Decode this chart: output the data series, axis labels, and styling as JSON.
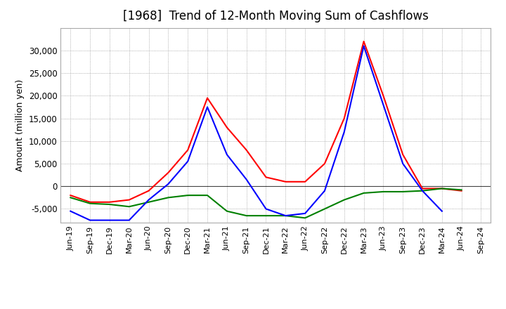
{
  "title": "[1968]  Trend of 12-Month Moving Sum of Cashflows",
  "ylabel": "Amount (million yen)",
  "x_labels": [
    "Jun-19",
    "Sep-19",
    "Dec-19",
    "Mar-20",
    "Jun-20",
    "Sep-20",
    "Dec-20",
    "Mar-21",
    "Jun-21",
    "Sep-21",
    "Dec-21",
    "Mar-22",
    "Jun-22",
    "Sep-22",
    "Dec-22",
    "Mar-23",
    "Jun-23",
    "Sep-23",
    "Dec-23",
    "Mar-24",
    "Jun-24",
    "Sep-24"
  ],
  "operating_cashflow": [
    -2000,
    -3500,
    -3500,
    -3000,
    -1000,
    3000,
    8000,
    19500,
    13000,
    8000,
    2000,
    1000,
    1000,
    5000,
    15000,
    32000,
    20000,
    7000,
    -500,
    -500,
    -1000,
    null
  ],
  "investing_cashflow": [
    -2500,
    -3800,
    -4000,
    -4500,
    -3500,
    -2500,
    -2000,
    -2000,
    -5500,
    -6500,
    -6500,
    -6500,
    -7000,
    -5000,
    -3000,
    -1500,
    -1200,
    -1200,
    -1000,
    -500,
    -800,
    null
  ],
  "free_cashflow": [
    -5500,
    -7500,
    -7500,
    -7500,
    -3000,
    500,
    5500,
    17500,
    7000,
    1500,
    -5000,
    -6500,
    -6000,
    -1000,
    12000,
    31000,
    18000,
    5000,
    -1000,
    -5500,
    null,
    null
  ],
  "operating_color": "#ff0000",
  "investing_color": "#008000",
  "free_color": "#0000ff",
  "ylim": [
    -8000,
    35000
  ],
  "yticks": [
    -5000,
    0,
    5000,
    10000,
    15000,
    20000,
    25000,
    30000
  ],
  "background_color": "#ffffff",
  "grid_color": "#999999",
  "title_fontsize": 12,
  "legend_fontsize": 9.5,
  "axis_fontsize": 8.5,
  "ylabel_fontsize": 9
}
